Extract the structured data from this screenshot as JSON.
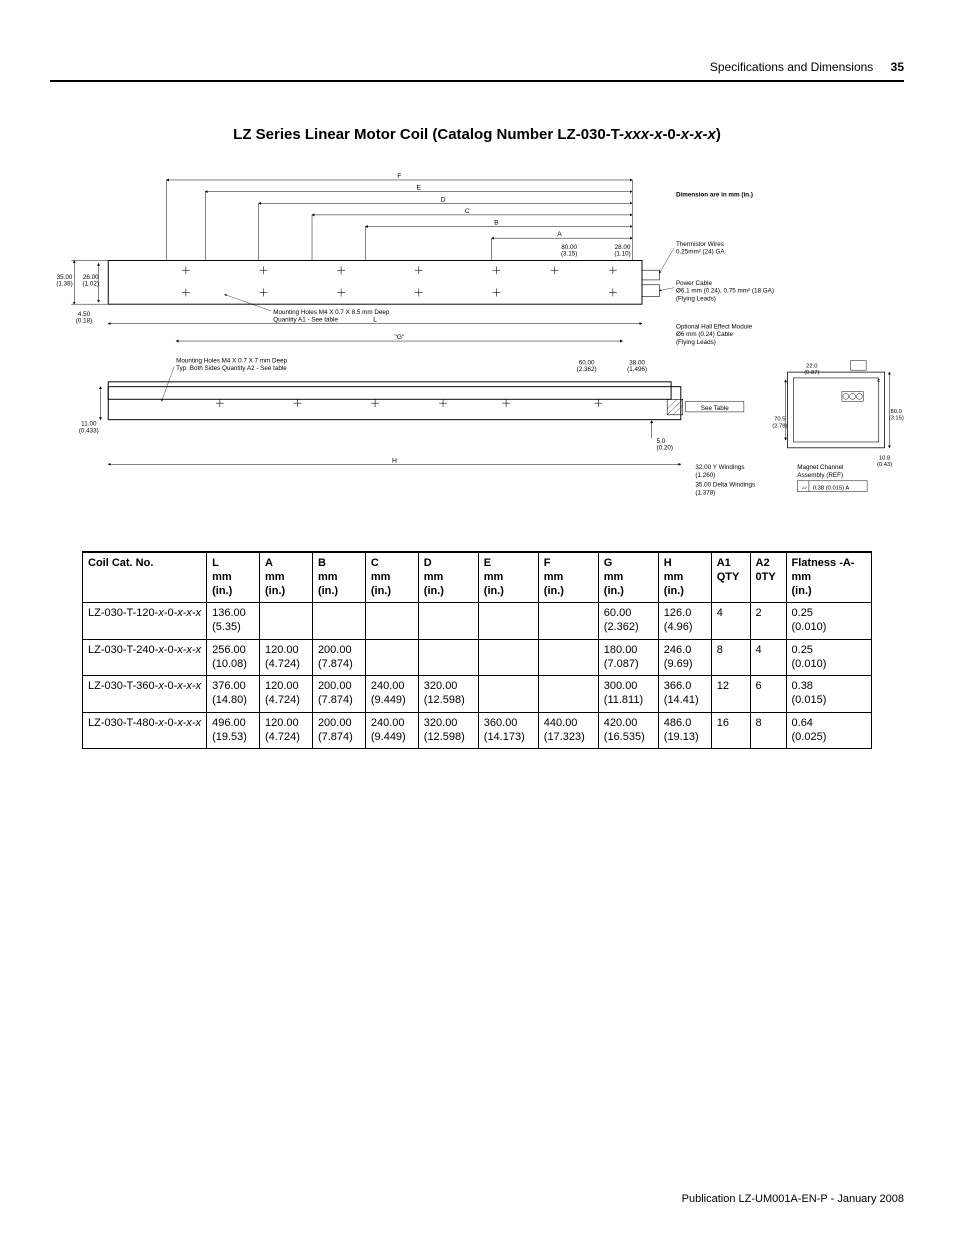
{
  "header": {
    "section": "Specifications and Dimensions",
    "page_num": "35"
  },
  "title": {
    "prefix": "LZ Series Linear Motor Coil (Catalog Number LZ-030-T-",
    "mid_italic": "xxx-x",
    "mid2": "-0-",
    "mid_italic2": "x-x-x",
    "suffix": ")"
  },
  "diagram": {
    "note_box": "Dimension are in mm (in.)",
    "labels": {
      "l1": "35.00",
      "l1b": "(1.38)",
      "l2": "26.00",
      "l2b": "(1.02)",
      "l3": "4.50",
      "l3b": "(0.18)",
      "l4": "11.00",
      "l4b": "(0.433)",
      "mh1a": "Mounting Holes M4 X 0.7 X 8.5 mm Deep",
      "mh1b": "Quantity A1 - See table",
      "mh2a": "Mounting Holes M4 X 0.7 X 7 mm Deep",
      "mh2b": "Typ. Both Sides Quantity A2 - See table",
      "d80a": "80.00",
      "d80b": "(3.15)",
      "d28a": "28.00",
      "d28b": "(1.10)",
      "d60a": "60.00",
      "d60b": "(2.362)",
      "d38a": "38.00",
      "d38b": "(1.496)",
      "d5a": "5.0",
      "d5b": "(0.20)",
      "therm_a": "Thermistor Wires",
      "therm_b": "0.25mm² (24) GA",
      "power_a": "Power Cable",
      "power_b": "Ø6.1 mm (0.24), 0.75 mm² (18 GA)",
      "power_c": "(Flying Leads)",
      "hall_a": "Optional Hall Effect Module",
      "hall_b": "Ø6 mm (0.24) Cable",
      "hall_c": "(Flying Leads)",
      "see_table": "See Table",
      "y_wind_a": "32.00 Y Windings",
      "y_wind_b": "(1.260)",
      "d_wind_a": "35.00 Delta Windings",
      "d_wind_b": "(1.378)",
      "mag_a": "Magnet Channel",
      "mag_b": "Assembly (REF)",
      "flat": "0.38 (0.015) A",
      "r22a": "22.0",
      "r22b": "(0.87)",
      "r70a": "70.5",
      "r70b": "(2.78)",
      "r80a": "80.0",
      "r80b": "(3.15)",
      "r10a": "10.8",
      "r10b": "(0.43)",
      "dimA": "A",
      "dimB": "B",
      "dimC": "C",
      "dimD": "D",
      "dimE": "E",
      "dimF": "F",
      "dimG": "\"G\"",
      "dimH": "H",
      "dimL": "L",
      "dimc": "c"
    }
  },
  "table": {
    "headers": [
      {
        "l1": "Coil Cat. No.",
        "l2": "",
        "l3": ""
      },
      {
        "l1": "L",
        "l2": "mm",
        "l3": "(in.)"
      },
      {
        "l1": "A",
        "l2": "mm",
        "l3": "(in.)"
      },
      {
        "l1": "B",
        "l2": "mm",
        "l3": "(in.)"
      },
      {
        "l1": "C",
        "l2": "mm",
        "l3": "(in.)"
      },
      {
        "l1": "D",
        "l2": "mm",
        "l3": "(in.)"
      },
      {
        "l1": "E",
        "l2": "mm",
        "l3": "(in.)"
      },
      {
        "l1": "F",
        "l2": "mm",
        "l3": "(in.)"
      },
      {
        "l1": "G",
        "l2": "mm",
        "l3": "(in.)"
      },
      {
        "l1": "H",
        "l2": "mm",
        "l3": "(in.)"
      },
      {
        "l1": "A1",
        "l2": "QTY",
        "l3": ""
      },
      {
        "l1": "A2",
        "l2": "0TY",
        "l3": ""
      },
      {
        "l1": "Flatness -A-",
        "l2": "mm",
        "l3": "(in.)"
      }
    ],
    "rows": [
      {
        "cat_pre": "LZ-030-T-120-",
        "cat_it": "x",
        "cat_mid": "-0-",
        "cat_it2": "x-x-x",
        "L": [
          "136.00",
          "(5.35)"
        ],
        "A": [
          "",
          ""
        ],
        "B": [
          "",
          ""
        ],
        "C": [
          "",
          ""
        ],
        "D": [
          "",
          ""
        ],
        "E": [
          "",
          ""
        ],
        "F": [
          "",
          ""
        ],
        "G": [
          "60.00",
          "(2.362)"
        ],
        "H": [
          "126.0",
          "(4.96)"
        ],
        "A1": "4",
        "A2": "2",
        "Flat": [
          "0.25",
          "(0.010)"
        ]
      },
      {
        "cat_pre": "LZ-030-T-240-",
        "cat_it": "x",
        "cat_mid": "-0-",
        "cat_it2": "x-x-x",
        "L": [
          "256.00",
          "(10.08)"
        ],
        "A": [
          "120.00",
          "(4.724)"
        ],
        "B": [
          "200.00",
          "(7.874)"
        ],
        "C": [
          "",
          ""
        ],
        "D": [
          "",
          ""
        ],
        "E": [
          "",
          ""
        ],
        "F": [
          "",
          ""
        ],
        "G": [
          "180.00",
          "(7.087)"
        ],
        "H": [
          "246.0",
          "(9.69)"
        ],
        "A1": "8",
        "A2": "4",
        "Flat": [
          "0.25",
          "(0.010)"
        ]
      },
      {
        "cat_pre": "LZ-030-T-360-",
        "cat_it": "x",
        "cat_mid": "-0-",
        "cat_it2": "x-x-x",
        "L": [
          "376.00",
          "(14.80)"
        ],
        "A": [
          "120.00",
          "(4.724)"
        ],
        "B": [
          "200.00",
          "(7.874)"
        ],
        "C": [
          "240.00",
          "(9.449)"
        ],
        "D": [
          "320.00",
          "(12.598)"
        ],
        "E": [
          "",
          ""
        ],
        "F": [
          "",
          ""
        ],
        "G": [
          "300.00",
          "(11.811)"
        ],
        "H": [
          "366.0",
          "(14.41)"
        ],
        "A1": "12",
        "A2": "6",
        "Flat": [
          "0.38",
          "(0.015)"
        ]
      },
      {
        "cat_pre": "LZ-030-T-480-",
        "cat_it": "x",
        "cat_mid": "-0-",
        "cat_it2": "x-x-x",
        "L": [
          "496.00",
          "(19.53)"
        ],
        "A": [
          "120.00",
          "(4.724)"
        ],
        "B": [
          "200.00",
          "(7.874)"
        ],
        "C": [
          "240.00",
          "(9.449)"
        ],
        "D": [
          "320.00",
          "(12.598)"
        ],
        "E": [
          "360.00",
          "(14.173)"
        ],
        "F": [
          "440.00",
          "(17.323)"
        ],
        "G": [
          "420.00",
          "(16.535)"
        ],
        "H": [
          "486.0",
          "(19.13)"
        ],
        "A1": "16",
        "A2": "8",
        "Flat": [
          "0.64",
          "(0.025)"
        ]
      }
    ]
  },
  "footer": "Publication LZ-UM001A-EN-P - January 2008",
  "colors": {
    "line": "#000000"
  }
}
